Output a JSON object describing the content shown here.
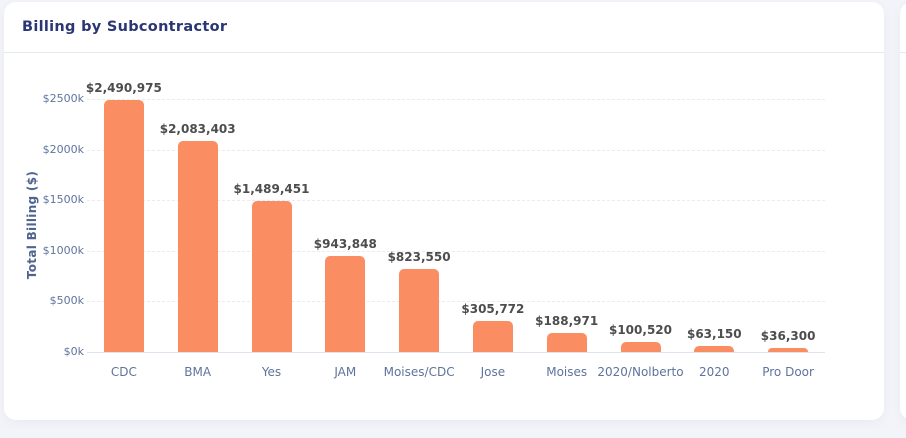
{
  "card": {
    "title": "Billing by Subcontractor"
  },
  "chart_data": {
    "type": "bar",
    "title": "Billing by Subcontractor",
    "xlabel": "",
    "ylabel": "Total Billing ($)",
    "categories": [
      "CDC",
      "BMA",
      "Yes",
      "JAM",
      "Moises/CDC",
      "Jose",
      "Moises",
      "2020/Nolberto",
      "2020",
      "Pro Door"
    ],
    "values": [
      2490975,
      2083403,
      1489451,
      943848,
      823550,
      305772,
      188971,
      100520,
      63150,
      36300
    ],
    "value_labels": [
      "$2,490,975",
      "$2,083,403",
      "$1,489,451",
      "$943,848",
      "$823,550",
      "$305,772",
      "$188,971",
      "$100,520",
      "$63,150",
      "$36,300"
    ],
    "ylim": [
      0,
      2500000
    ],
    "yticks": {
      "values": [
        0,
        500000,
        1000000,
        1500000,
        2000000,
        2500000
      ],
      "labels": [
        "$0k",
        "$500k",
        "$1000k",
        "$1500k",
        "$2000k",
        "$2500k"
      ]
    },
    "grid": "horizontal-dashed",
    "legend": false,
    "colors": {
      "bar": "#fa8d62",
      "value_label": "#4d4d4d",
      "axis_text": "#5f749c",
      "axis_title": "#4f658e",
      "gridline": "#ebebef",
      "axis_line": "#dde4ee",
      "card_title": "#2b3674",
      "page_background": "#f3f4f9",
      "card_background": "#ffffff"
    }
  }
}
